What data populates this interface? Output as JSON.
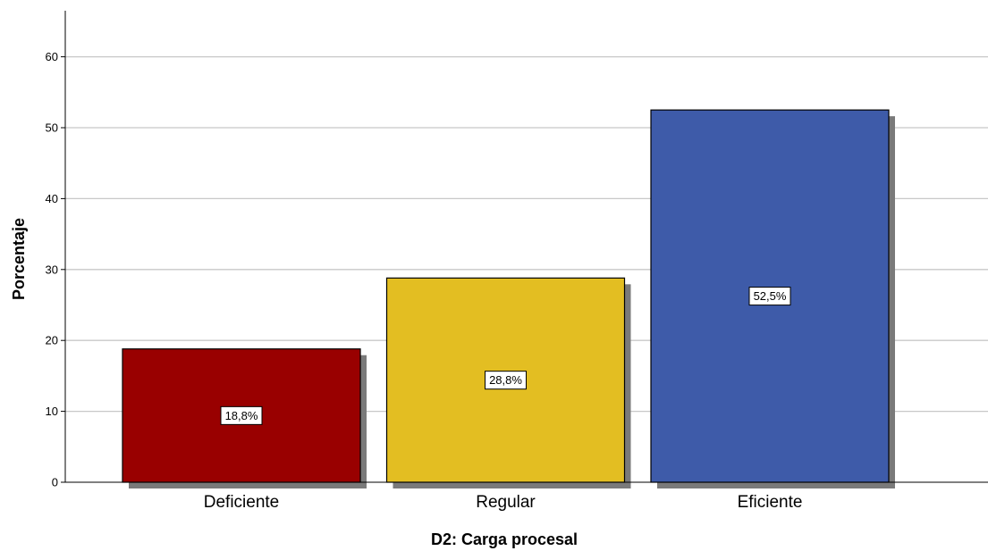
{
  "chart_data": {
    "type": "bar",
    "xlabel": "D2: Carga procesal",
    "ylabel": "Porcentaje",
    "categories": [
      "Deficiente",
      "Regular",
      "Eficiente"
    ],
    "values": [
      18.8,
      28.8,
      52.5
    ],
    "data_labels": [
      "18,8%",
      "28,8%",
      "52,5%"
    ],
    "colors": [
      "#990000",
      "#E3BE22",
      "#3E5BA9"
    ],
    "ylim": [
      0,
      66
    ],
    "yticks": [
      0,
      10,
      20,
      30,
      40,
      50,
      60
    ],
    "grid": true,
    "legend": "none"
  }
}
